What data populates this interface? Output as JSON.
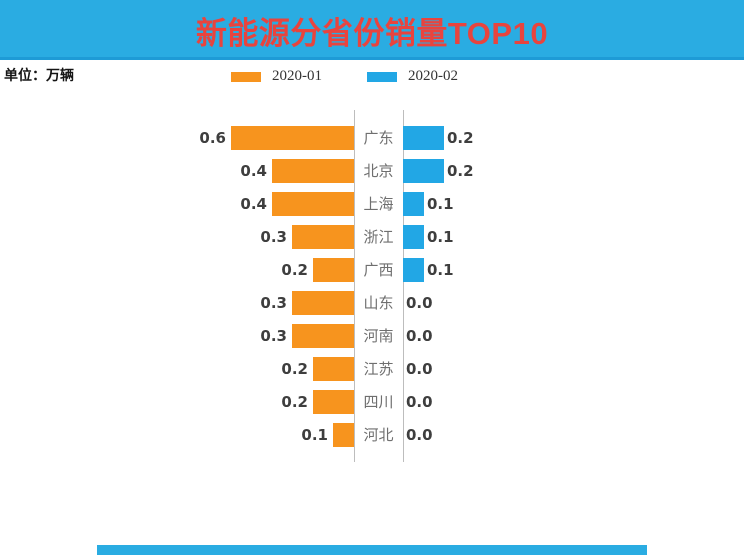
{
  "header": {
    "title": "新能源分省份销量TOP10",
    "background_color": "#2AACE2",
    "title_color": "#E8443E"
  },
  "unit_label": "单位：万辆",
  "legend": [
    {
      "label": "2020-01",
      "color": "#F7941E"
    },
    {
      "label": "2020-02",
      "color": "#22A7E5"
    }
  ],
  "chart_data": {
    "type": "bar",
    "subtype": "bidirectional-tornado",
    "title": "新能源分省份销量TOP10",
    "unit": "万辆",
    "categories": [
      "广东",
      "北京",
      "上海",
      "浙江",
      "广西",
      "山东",
      "河南",
      "江苏",
      "四川",
      "河北"
    ],
    "series": [
      {
        "name": "2020-01",
        "direction": "left",
        "color": "#F7941E",
        "values": [
          0.6,
          0.4,
          0.4,
          0.3,
          0.2,
          0.3,
          0.3,
          0.2,
          0.2,
          0.1
        ]
      },
      {
        "name": "2020-02",
        "direction": "right",
        "color": "#22A7E5",
        "values": [
          0.2,
          0.2,
          0.1,
          0.1,
          0.1,
          0.0,
          0.0,
          0.0,
          0.0,
          0.0
        ]
      }
    ],
    "value_format": "one-decimal",
    "xlim": [
      0,
      0.6
    ],
    "grid": false,
    "legend_position": "top",
    "axis_line_color": "#bdbdbd"
  }
}
